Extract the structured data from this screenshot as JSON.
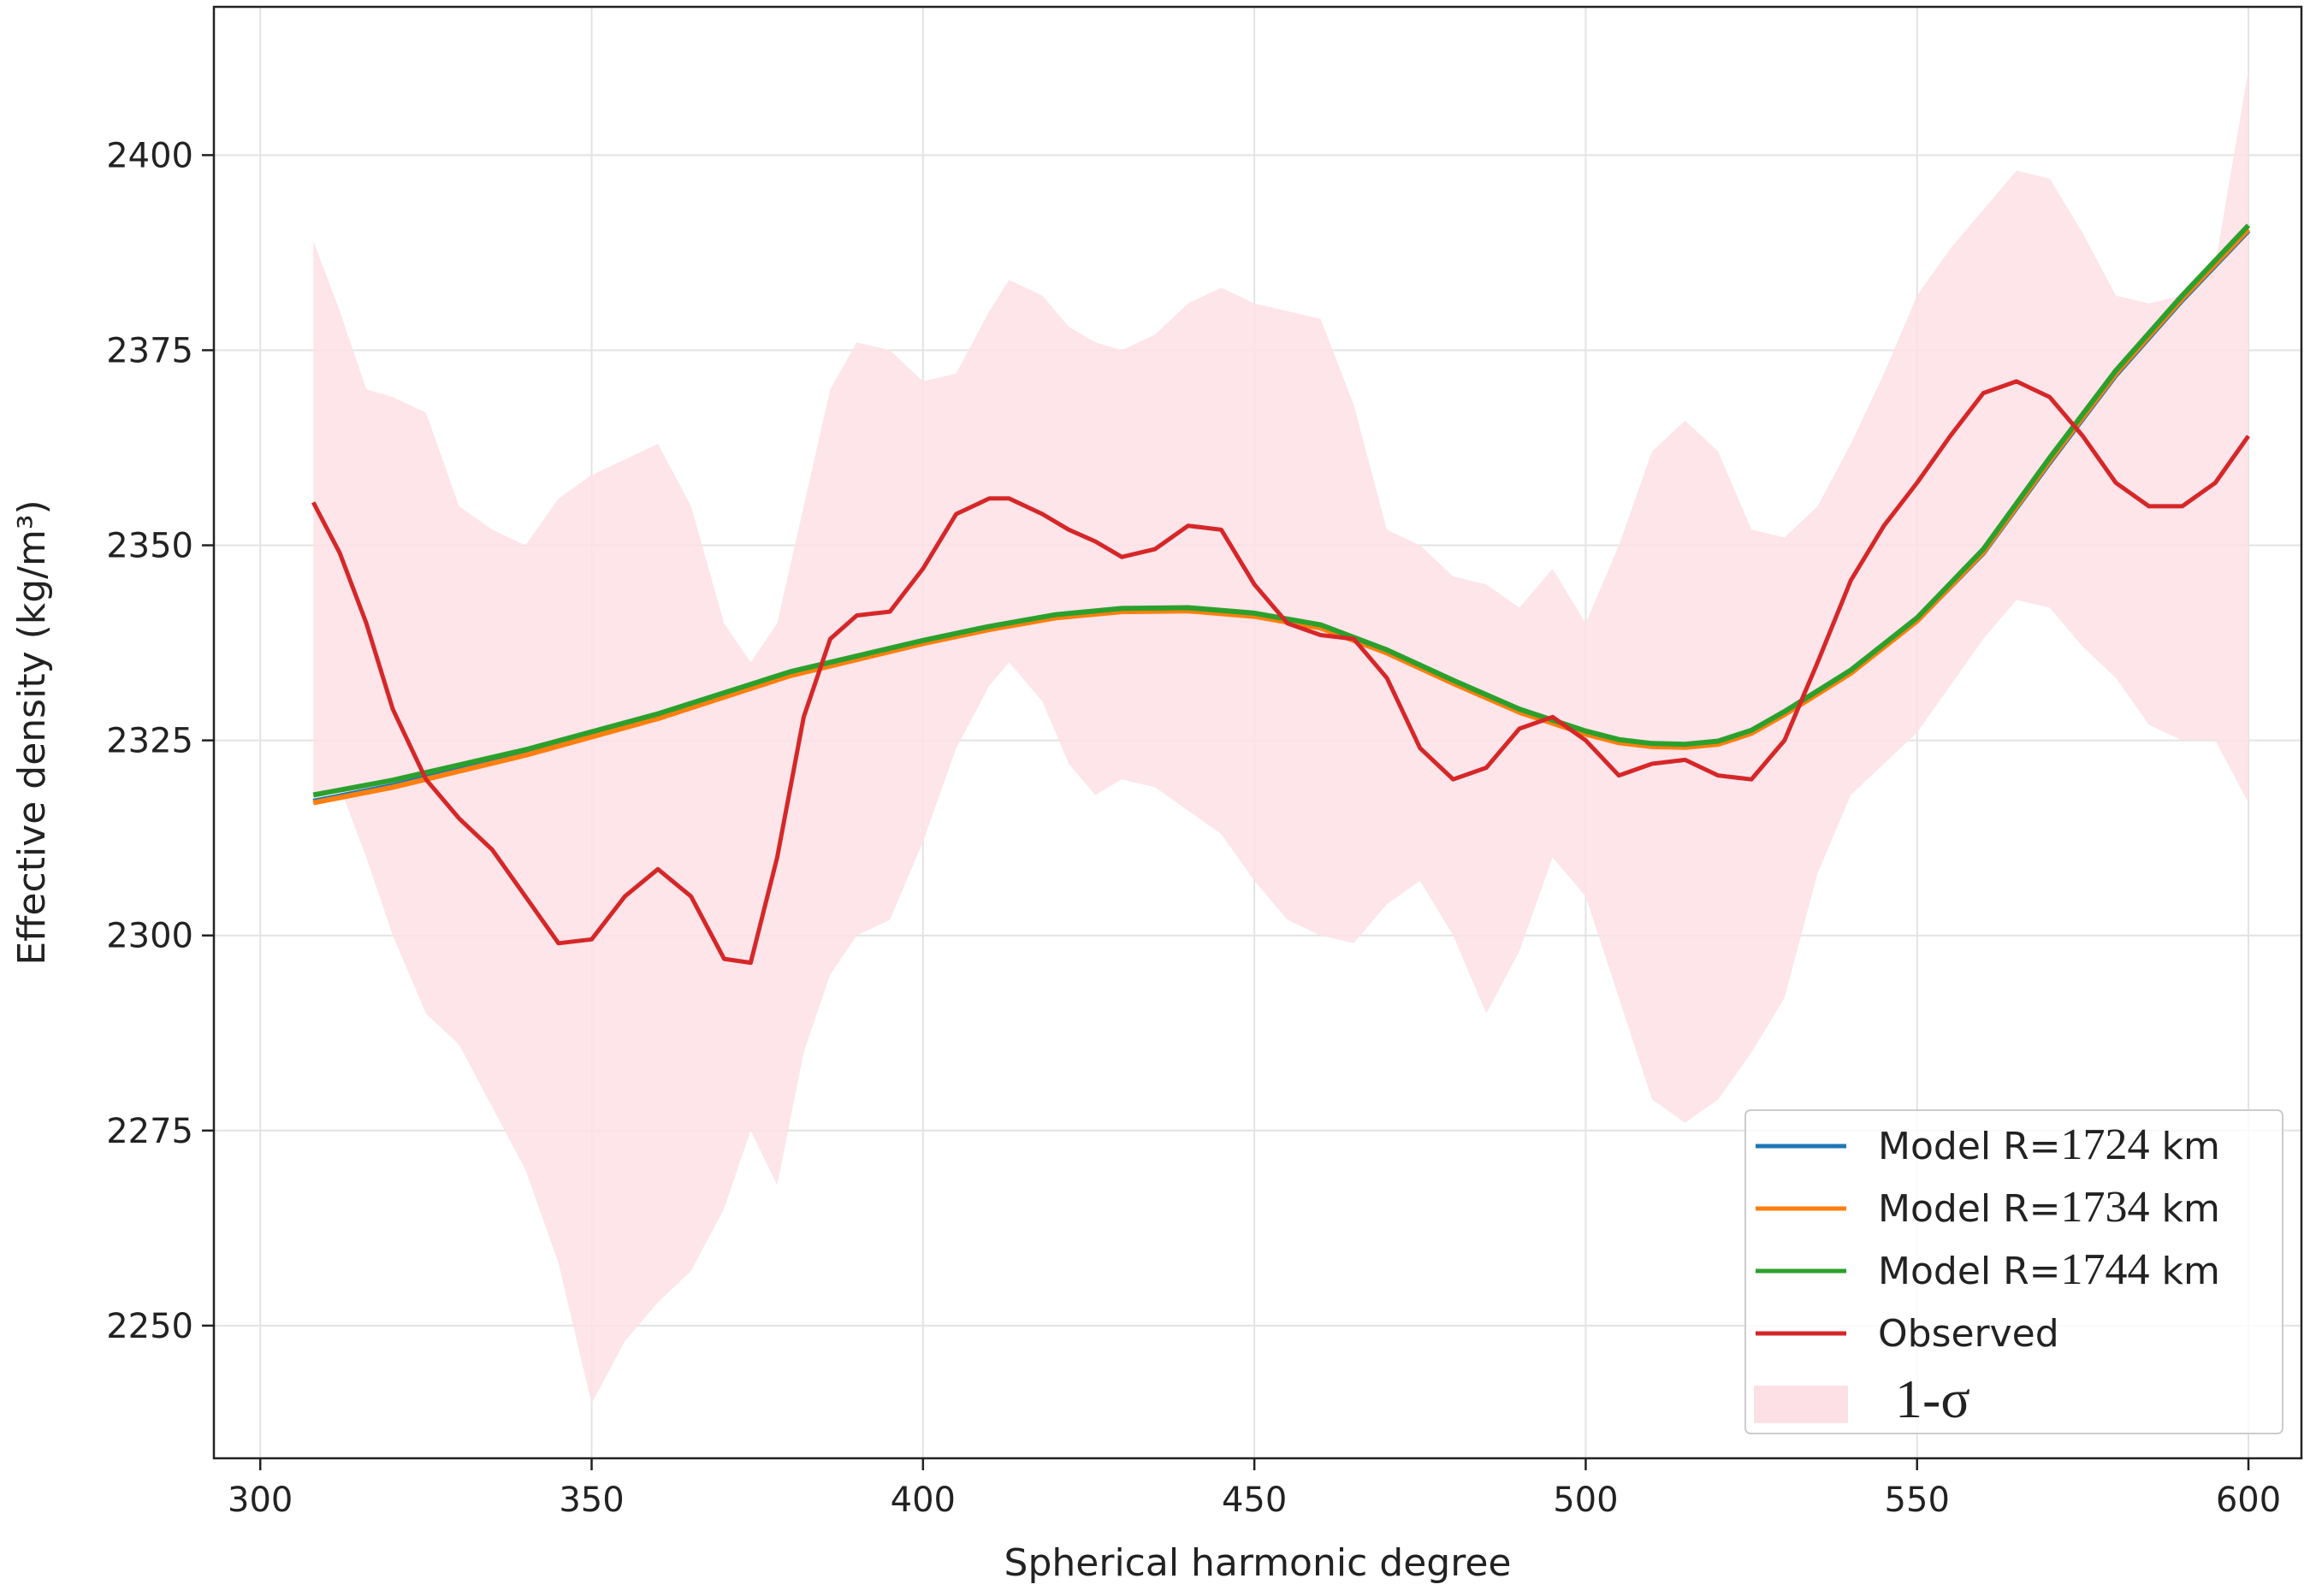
{
  "chart_data": {
    "type": "line",
    "xlabel": "Spherical harmonic degree",
    "ylabel": "Effective density (kg/m³)",
    "xlim": [
      293,
      608
    ],
    "ylim": [
      2233,
      2419
    ],
    "xticks": [
      300,
      350,
      400,
      450,
      500,
      550,
      600
    ],
    "yticks": [
      2250,
      2275,
      2300,
      2325,
      2350,
      2375,
      2400
    ],
    "grid": true,
    "legend_position": "bottom-right",
    "colors": {
      "model_1724": "#1f77b4",
      "model_1734": "#ff7f0e",
      "model_1744": "#2ca02c",
      "observed": "#d62728",
      "sigma_band": "#fde0e6"
    },
    "legend": [
      {
        "key": "model_1724",
        "prefix": "Model R=",
        "number": "1724",
        "suffix": " km",
        "kind": "line"
      },
      {
        "key": "model_1734",
        "prefix": "Model R=",
        "number": "1734",
        "suffix": " km",
        "kind": "line"
      },
      {
        "key": "model_1744",
        "prefix": "Model R=",
        "number": "1744",
        "suffix": " km",
        "kind": "line"
      },
      {
        "key": "observed",
        "prefix": "Observed",
        "number": "",
        "suffix": "",
        "kind": "line"
      },
      {
        "key": "sigma_band",
        "prefix": "",
        "number": "1-σ",
        "suffix": "",
        "kind": "patch"
      }
    ],
    "model_x": [
      308,
      320,
      340,
      360,
      380,
      400,
      410,
      420,
      430,
      440,
      450,
      460,
      470,
      480,
      490,
      500,
      505,
      510,
      515,
      520,
      525,
      530,
      540,
      550,
      560,
      570,
      580,
      590,
      600
    ],
    "series": [
      {
        "name": "Model R=1724 km",
        "key": "model_1724",
        "values": [
          2317.2,
          2319.2,
          2323.3,
          2328.0,
          2333.5,
          2337.5,
          2339.3,
          2340.8,
          2341.6,
          2341.7,
          2341.0,
          2339.5,
          2336.3,
          2332.4,
          2328.7,
          2325.9,
          2324.8,
          2324.3,
          2324.2,
          2324.6,
          2326.0,
          2328.4,
          2333.7,
          2340.3,
          2349.0,
          2360.6,
          2371.8,
          2381.4,
          2390.3
        ]
      },
      {
        "name": "Model R=1734 km",
        "key": "model_1734",
        "values": [
          2317.0,
          2319.0,
          2323.1,
          2327.8,
          2333.3,
          2337.4,
          2339.2,
          2340.7,
          2341.5,
          2341.6,
          2340.9,
          2339.4,
          2336.2,
          2332.3,
          2328.6,
          2325.8,
          2324.7,
          2324.2,
          2324.1,
          2324.5,
          2325.9,
          2328.3,
          2333.6,
          2340.3,
          2349.1,
          2360.8,
          2372.0,
          2381.6,
          2390.5
        ]
      },
      {
        "name": "Model R=1744 km",
        "key": "model_1744",
        "values": [
          2318.0,
          2319.9,
          2323.8,
          2328.4,
          2333.8,
          2337.8,
          2339.6,
          2341.1,
          2341.9,
          2342.0,
          2341.3,
          2339.8,
          2336.6,
          2332.7,
          2329.0,
          2326.2,
          2325.1,
          2324.6,
          2324.5,
          2324.9,
          2326.3,
          2328.7,
          2334.0,
          2340.7,
          2349.5,
          2361.2,
          2372.4,
          2382.0,
          2391.0
        ]
      },
      {
        "name": "Observed",
        "key": "observed",
        "x": [
          308,
          312,
          316,
          320,
          325,
          330,
          335,
          340,
          345,
          350,
          355,
          360,
          365,
          370,
          374,
          378,
          382,
          386,
          390,
          395,
          400,
          405,
          410,
          413,
          418,
          422,
          426,
          430,
          435,
          440,
          445,
          450,
          455,
          460,
          465,
          470,
          475,
          480,
          485,
          490,
          495,
          500,
          505,
          510,
          515,
          520,
          525,
          530,
          535,
          540,
          545,
          550,
          555,
          560,
          565,
          570,
          575,
          580,
          585,
          590,
          595,
          600
        ],
        "values": [
          2355.5,
          2349.0,
          2340.0,
          2329.0,
          2320.0,
          2315.0,
          2311.0,
          2305.0,
          2299.0,
          2299.5,
          2305.0,
          2308.5,
          2305.0,
          2297.0,
          2296.5,
          2310.0,
          2328.0,
          2338.0,
          2341.0,
          2341.5,
          2347.0,
          2354.0,
          2356.0,
          2356.0,
          2354.0,
          2352.0,
          2350.5,
          2348.5,
          2349.5,
          2352.5,
          2352.0,
          2345.0,
          2340.0,
          2338.5,
          2338.0,
          2333.0,
          2324.0,
          2320.0,
          2321.5,
          2326.5,
          2328.0,
          2325.0,
          2320.5,
          2322.0,
          2322.5,
          2320.5,
          2320.0,
          2325.0,
          2335.0,
          2345.5,
          2352.5,
          2358.0,
          2364.0,
          2369.5,
          2371.0,
          2369.0,
          2364.0,
          2358.0,
          2355.0,
          2355.0,
          2358.0,
          2364.0
        ]
      }
    ],
    "band": {
      "name": "1-σ",
      "key": "sigma_band",
      "x": [
        308,
        312,
        316,
        320,
        325,
        330,
        335,
        340,
        345,
        350,
        355,
        360,
        365,
        370,
        374,
        378,
        382,
        386,
        390,
        395,
        400,
        405,
        410,
        413,
        418,
        422,
        426,
        430,
        435,
        440,
        445,
        450,
        455,
        460,
        465,
        470,
        475,
        480,
        485,
        490,
        495,
        500,
        505,
        510,
        515,
        520,
        525,
        530,
        535,
        540,
        545,
        550,
        555,
        560,
        565,
        570,
        575,
        580,
        585,
        590,
        595,
        600
      ],
      "upper": [
        2389.0,
        2380.0,
        2370.0,
        2369.0,
        2367.0,
        2355.0,
        2352.0,
        2350.0,
        2356.0,
        2359.0,
        2361.0,
        2363.0,
        2355.0,
        2340.0,
        2335.0,
        2340.0,
        2355.0,
        2370.0,
        2376.0,
        2375.0,
        2371.0,
        2372.0,
        2380.0,
        2384.0,
        2382.0,
        2378.0,
        2376.0,
        2375.0,
        2377.0,
        2381.0,
        2383.0,
        2381.0,
        2380.0,
        2379.0,
        2368.0,
        2352.0,
        2350.0,
        2346.0,
        2345.0,
        2342.0,
        2347.0,
        2340.0,
        2350.0,
        2362.0,
        2366.0,
        2362.0,
        2352.0,
        2351.0,
        2355.0,
        2363.0,
        2372.0,
        2382.0,
        2388.0,
        2393.0,
        2398.0,
        2397.0,
        2390.0,
        2382.0,
        2381.0,
        2382.0,
        2386.0,
        2411.0
      ],
      "lower": [
        2318.0,
        2319.0,
        2310.0,
        2300.0,
        2290.0,
        2286.0,
        2278.0,
        2270.0,
        2258.0,
        2240.0,
        2248.0,
        2253.0,
        2257.0,
        2265.0,
        2275.0,
        2268.0,
        2285.0,
        2295.0,
        2300.0,
        2302.0,
        2312.0,
        2324.0,
        2332.0,
        2335.0,
        2330.0,
        2322.0,
        2318.0,
        2320.0,
        2319.0,
        2316.0,
        2313.0,
        2307.0,
        2302.0,
        2300.0,
        2299.0,
        2304.0,
        2307.0,
        2300.0,
        2290.0,
        2298.0,
        2310.0,
        2305.0,
        2292.0,
        2279.0,
        2276.0,
        2279.0,
        2285.0,
        2292.0,
        2308.0,
        2318.0,
        2322.0,
        2326.0,
        2332.0,
        2338.0,
        2343.0,
        2342.0,
        2337.0,
        2333.0,
        2327.0,
        2325.0,
        2325.0,
        2317.0
      ]
    }
  }
}
